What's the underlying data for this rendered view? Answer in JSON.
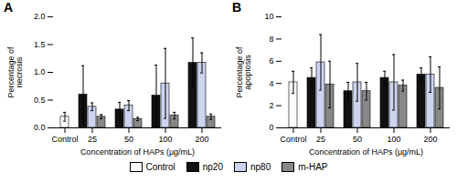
{
  "chart_data": [
    {
      "type": "bar",
      "title": "A",
      "xlabel": "Concentration of HAPs (μg/mL)",
      "ylabel": "Percentage of\nnecrosis",
      "categories": [
        "Control",
        "25",
        "50",
        "100",
        "200"
      ],
      "series": [
        {
          "name": "Control",
          "color": "#ffffff",
          "values": [
            0.2,
            null,
            null,
            null,
            null
          ],
          "errors": [
            0.08,
            null,
            null,
            null,
            null
          ]
        },
        {
          "name": "np20",
          "color": "#111111",
          "values": [
            null,
            0.6,
            0.33,
            0.58,
            1.17
          ],
          "errors": [
            null,
            0.52,
            0.13,
            0.55,
            0.45
          ]
        },
        {
          "name": "np80",
          "color": "#ccd4f0",
          "values": [
            null,
            0.38,
            0.4,
            0.8,
            1.17
          ],
          "errors": [
            null,
            0.07,
            0.09,
            0.63,
            0.18
          ]
        },
        {
          "name": "m-HAP",
          "color": "#888888",
          "values": [
            null,
            0.2,
            0.16,
            0.22,
            0.2
          ],
          "errors": [
            null,
            0.04,
            0.03,
            0.06,
            0.05
          ]
        }
      ],
      "ylim": [
        0,
        2.0
      ],
      "yticks": [
        {
          "value": 0,
          "label": "0.0"
        },
        0.5,
        {
          "value": 1,
          "label": "1.0"
        },
        1.5,
        {
          "value": 2,
          "label": "2.0"
        }
      ],
      "legend": "bottom"
    },
    {
      "type": "bar",
      "title": "B",
      "xlabel": "Concentration of HAPs (μg/mL)",
      "ylabel": "Percentage of\napoptosis",
      "categories": [
        "Control",
        "25",
        "50",
        "100",
        "200"
      ],
      "series": [
        {
          "name": "Control",
          "color": "#ffffff",
          "values": [
            4.1,
            null,
            null,
            null,
            null
          ],
          "errors": [
            1.0,
            null,
            null,
            null,
            null
          ]
        },
        {
          "name": "np20",
          "color": "#111111",
          "values": [
            null,
            4.5,
            3.3,
            4.5,
            4.8
          ],
          "errors": [
            null,
            0.9,
            0.8,
            0.6,
            0.6
          ]
        },
        {
          "name": "np80",
          "color": "#ccd4f0",
          "values": [
            null,
            5.9,
            4.1,
            4.1,
            4.8
          ],
          "errors": [
            null,
            2.5,
            1.7,
            2.5,
            1.6
          ]
        },
        {
          "name": "m-HAP",
          "color": "#888888",
          "values": [
            null,
            3.9,
            3.3,
            3.8,
            3.6
          ],
          "errors": [
            null,
            2.1,
            0.8,
            0.5,
            1.9
          ]
        }
      ],
      "ylim": [
        0,
        10
      ],
      "yticks": [
        0,
        2,
        4,
        6,
        8,
        10
      ],
      "legend": "bottom"
    }
  ]
}
